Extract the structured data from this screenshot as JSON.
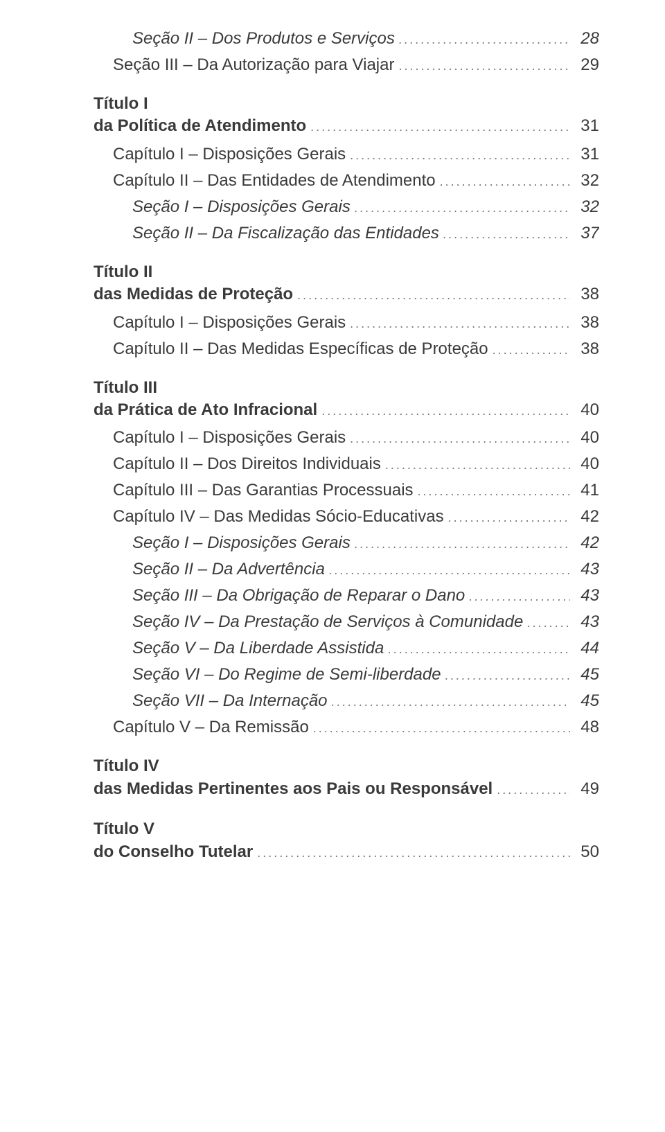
{
  "text_color": "#3a3a3a",
  "background_color": "#ffffff",
  "base_fontsize": 24,
  "entries": [
    {
      "level": "l3",
      "label": "Seção II – Dos Produtos e Serviços",
      "page": "28",
      "first": true
    },
    {
      "level": "l2",
      "label": "Seção III – Da Autorização para Viajar",
      "page": "29"
    },
    {
      "level": "title",
      "line1": "Título I",
      "line2": "da Política de Atendimento",
      "page": "31"
    },
    {
      "level": "l2",
      "label": "Capítulo I – Disposições Gerais",
      "page": "31"
    },
    {
      "level": "l2",
      "label": "Capítulo II – Das Entidades de Atendimento",
      "page": "32"
    },
    {
      "level": "l3",
      "label": "Seção I – Disposições Gerais",
      "page": "32"
    },
    {
      "level": "l3",
      "label": "Seção II – Da Fiscalização das Entidades",
      "page": "37"
    },
    {
      "level": "title",
      "line1": "Título II",
      "line2": "das Medidas de Proteção",
      "page": "38"
    },
    {
      "level": "l2",
      "label": "Capítulo I – Disposições Gerais",
      "page": "38"
    },
    {
      "level": "l2",
      "label": "Capítulo II – Das Medidas Específicas de Proteção",
      "page": "38"
    },
    {
      "level": "title",
      "line1": "Título III",
      "line2": "da Prática de Ato Infracional",
      "page": "40"
    },
    {
      "level": "l2",
      "label": "Capítulo I – Disposições Gerais",
      "page": "40"
    },
    {
      "level": "l2",
      "label": "Capítulo II – Dos Direitos Individuais",
      "page": "40"
    },
    {
      "level": "l2",
      "label": "Capítulo III – Das Garantias Processuais",
      "page": "41"
    },
    {
      "level": "l2",
      "label": "Capítulo IV – Das Medidas Sócio-Educativas",
      "page": "42"
    },
    {
      "level": "l3",
      "label": "Seção I – Disposições Gerais",
      "page": "42"
    },
    {
      "level": "l3",
      "label": "Seção II – Da Advertência",
      "page": "43"
    },
    {
      "level": "l3",
      "label": "Seção III – Da Obrigação de Reparar o Dano",
      "page": "43"
    },
    {
      "level": "l3",
      "label": "Seção IV – Da Prestação de Serviços à Comunidade",
      "page": "43"
    },
    {
      "level": "l3",
      "label": "Seção V – Da Liberdade Assistida",
      "page": "44"
    },
    {
      "level": "l3",
      "label": "Seção VI – Do Regime de Semi-liberdade",
      "page": "45"
    },
    {
      "level": "l3",
      "label": "Seção VII – Da Internação",
      "page": "45"
    },
    {
      "level": "l2",
      "label": "Capítulo V – Da Remissão",
      "page": "48"
    },
    {
      "level": "title",
      "line1": "Título IV",
      "line2": "das Medidas Pertinentes aos Pais ou Responsável",
      "page": "49"
    },
    {
      "level": "title",
      "line1": "Título V",
      "line2": "do Conselho Tutelar",
      "page": "50"
    }
  ]
}
